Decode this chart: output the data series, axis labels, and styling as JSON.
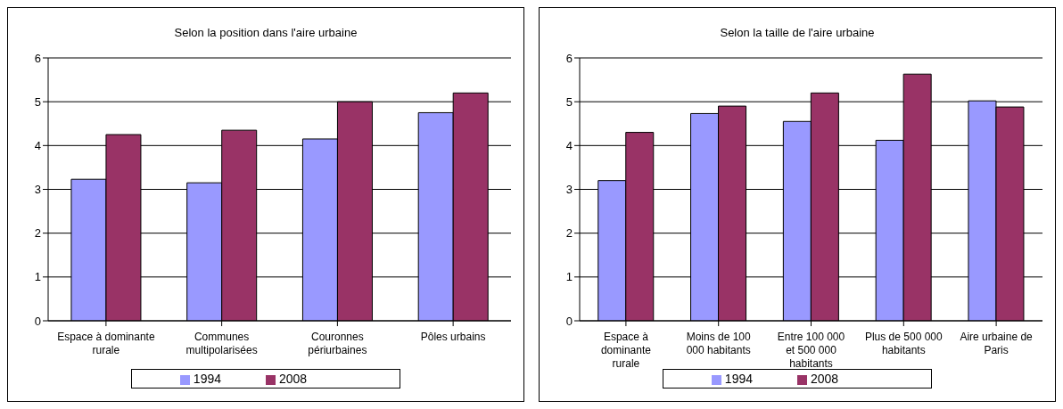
{
  "chart_data": [
    {
      "type": "bar",
      "title": "Selon la position dans l'aire urbaine",
      "categories": [
        "Espace à dominante rurale",
        "Communes multipolarisées",
        "Couronnes périurbaines",
        "Pôles urbains"
      ],
      "series": [
        {
          "name": "1994",
          "color": "#9999ff",
          "values": [
            3.23,
            3.15,
            4.15,
            4.75
          ]
        },
        {
          "name": "2008",
          "color": "#993366",
          "values": [
            4.25,
            4.35,
            5.0,
            5.2
          ]
        }
      ],
      "ylim": [
        0,
        6
      ],
      "yticks": [
        0,
        1,
        2,
        3,
        4,
        5,
        6
      ],
      "grid": "y",
      "legend": "bottom"
    },
    {
      "type": "bar",
      "title": "Selon la taille de l'aire urbaine",
      "categories": [
        "Espace à dominante rurale",
        "Moins de 100 000 habitants",
        "Entre 100 000 et 500 000 habitants",
        "Plus de 500 000 habitants",
        "Aire urbaine de Paris"
      ],
      "series": [
        {
          "name": "1994",
          "color": "#9999ff",
          "values": [
            3.2,
            4.73,
            4.55,
            4.12,
            5.02
          ]
        },
        {
          "name": "2008",
          "color": "#993366",
          "values": [
            4.3,
            4.9,
            5.2,
            5.63,
            4.88
          ]
        }
      ],
      "ylim": [
        0,
        6
      ],
      "yticks": [
        0,
        1,
        2,
        3,
        4,
        5,
        6
      ],
      "grid": "y",
      "legend": "bottom"
    }
  ]
}
